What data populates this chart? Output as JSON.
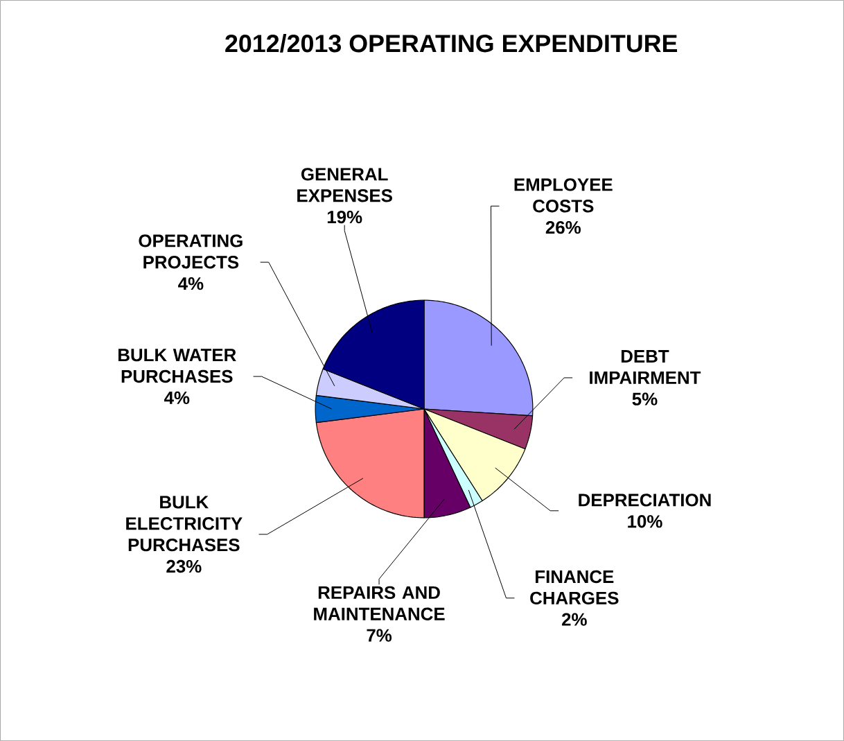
{
  "chart_data": {
    "type": "pie",
    "title": "2012/2013 OPERATING EXPENDITURE",
    "categories": [
      "EMPLOYEE COSTS",
      "DEBT IMPAIRMENT",
      "DEPRECIATION",
      "FINANCE CHARGES",
      "REPAIRS AND MAINTENANCE",
      "BULK ELECTRICITY PURCHASES",
      "BULK WATER PURCHASES",
      "OPERATING PROJECTS",
      "GENERAL EXPENSES"
    ],
    "values": [
      26,
      5,
      10,
      2,
      7,
      23,
      4,
      4,
      19
    ],
    "value_labels": [
      "26%",
      "5%",
      "10%",
      "2%",
      "7%",
      "23%",
      "4%",
      "4%",
      "19%"
    ],
    "colors": [
      "#9999ff",
      "#993366",
      "#ffffcc",
      "#ccffff",
      "#660066",
      "#ff8080",
      "#0066cc",
      "#ccccff",
      "#000080"
    ]
  }
}
